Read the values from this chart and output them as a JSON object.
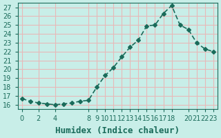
{
  "x": [
    0,
    1,
    2,
    3,
    4,
    5,
    6,
    7,
    8,
    9,
    10,
    11,
    12,
    13,
    14,
    15,
    16,
    17,
    18,
    19,
    20,
    21,
    22,
    23
  ],
  "y": [
    16.7,
    16.4,
    16.2,
    16.1,
    16.0,
    16.1,
    16.2,
    16.4,
    16.5,
    18.0,
    19.3,
    20.2,
    21.4,
    22.5,
    23.3,
    24.9,
    25.0,
    26.3,
    27.2,
    25.0,
    24.5,
    23.0,
    22.3,
    22.0
  ],
  "xlabel": "Humidex (Indice chaleur)",
  "ylabel": "",
  "xlim": [
    -0.5,
    23.5
  ],
  "ylim": [
    15.5,
    27.5
  ],
  "yticks": [
    16,
    17,
    18,
    19,
    20,
    21,
    22,
    23,
    24,
    25,
    26,
    27
  ],
  "xticks": [
    0,
    2,
    4,
    8,
    9,
    10,
    11,
    12,
    13,
    14,
    15,
    16,
    17,
    18,
    20,
    21,
    22,
    23
  ],
  "bg_color": "#c8eee8",
  "grid_color": "#e8b8b8",
  "line_color": "#1a6b5a",
  "marker": "D",
  "marker_size": 3,
  "line_width": 1.2,
  "xlabel_fontsize": 9,
  "tick_fontsize": 7,
  "title_fontsize": 8
}
